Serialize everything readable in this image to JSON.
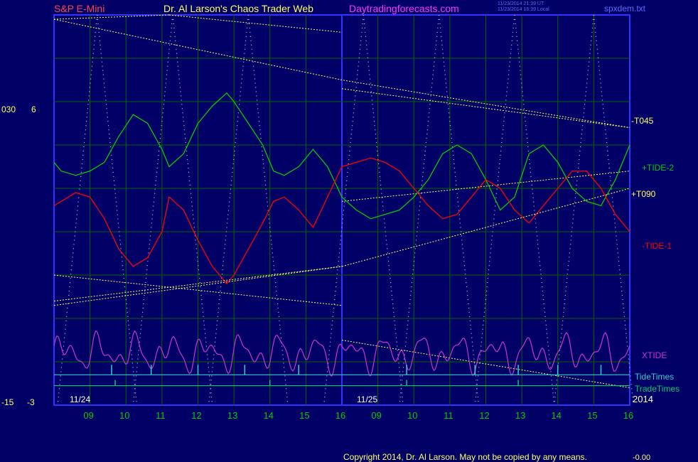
{
  "header": {
    "symbol": "S&P E-Mini",
    "author": "Dr. Al Larson's Chaos Trader Web",
    "site": "Daytradingforecasts.com",
    "utc_time": "11/23/2014 21:39 UT",
    "local_time": "11/23/2014 16:39 Local",
    "file": "spxdem.txt"
  },
  "footer": {
    "copyright": "Copyright 2014, Dr. Al Larson. May not be copied by any means.",
    "corner": "-0.00"
  },
  "colors": {
    "background": "#000066",
    "frame": "#3333ff",
    "grid": "#006600",
    "tide2": "#00cc00",
    "tide1": "#ff0000",
    "xtide": "#cc33cc",
    "tidetimes": "#33cccc",
    "tradetimes": "#00cc66",
    "trend": "#ffff66",
    "dots": "#c8c8ff"
  },
  "chart_data": {
    "type": "line",
    "x_tick_labels": [
      "09",
      "10",
      "11",
      "12",
      "13",
      "14",
      "15",
      "16",
      "09",
      "10",
      "11",
      "12",
      "13",
      "14",
      "15",
      "16"
    ],
    "day_labels": [
      "11/24",
      "11/25"
    ],
    "year_label": "2014",
    "left_scale_a": {
      "top": "030",
      "bottom": "-15"
    },
    "left_scale_b": {
      "top": "6",
      "bottom": "-3"
    },
    "x_range": [
      0,
      16
    ],
    "y_range": [
      -3,
      6
    ],
    "series": [
      {
        "name": "+TIDE-2",
        "x": [
          0,
          0.2,
          0.6,
          1.0,
          1.4,
          1.8,
          2.2,
          2.6,
          3.0,
          3.2,
          3.6,
          4.0,
          4.4,
          4.8,
          5.0,
          5.4,
          5.8,
          6.1,
          6.4,
          6.8,
          7.2,
          7.6,
          8.0,
          8.4,
          8.8,
          9.2,
          9.6,
          10.0,
          10.4,
          10.8,
          11.2,
          11.6,
          12.0,
          12.4,
          12.8,
          13.2,
          13.6,
          14.0,
          14.4,
          14.8,
          15.2,
          15.6,
          16.0
        ],
        "values": [
          2.6,
          2.4,
          2.3,
          2.4,
          2.6,
          3.2,
          3.7,
          3.5,
          2.9,
          2.5,
          2.8,
          3.5,
          3.9,
          4.2,
          4.0,
          3.5,
          3.0,
          2.4,
          2.3,
          2.5,
          2.9,
          2.5,
          1.8,
          1.5,
          1.3,
          1.4,
          1.5,
          1.8,
          2.2,
          2.8,
          3.0,
          2.8,
          2.2,
          1.5,
          1.8,
          2.8,
          3.0,
          2.6,
          2.0,
          1.7,
          1.6,
          2.2,
          3.0
        ]
      },
      {
        "name": "-TIDE-1",
        "x": [
          0,
          0.2,
          0.6,
          1.0,
          1.4,
          1.8,
          2.2,
          2.6,
          3.0,
          3.2,
          3.6,
          4.0,
          4.4,
          4.8,
          5.0,
          5.4,
          5.8,
          6.1,
          6.4,
          6.8,
          7.2,
          7.6,
          8.0,
          8.4,
          8.8,
          9.2,
          9.6,
          10.0,
          10.4,
          10.8,
          11.2,
          11.6,
          12.0,
          12.4,
          12.8,
          13.2,
          13.6,
          14.0,
          14.4,
          14.8,
          15.2,
          15.6,
          16.0
        ],
        "values": [
          1.6,
          1.7,
          1.9,
          1.8,
          1.3,
          0.6,
          0.2,
          0.4,
          1.0,
          1.8,
          1.5,
          0.8,
          0.2,
          -0.2,
          0.0,
          0.6,
          1.2,
          1.7,
          1.8,
          1.5,
          1.1,
          1.8,
          2.5,
          2.6,
          2.7,
          2.6,
          2.4,
          2.0,
          1.6,
          1.3,
          1.4,
          1.8,
          2.2,
          2.0,
          1.5,
          1.2,
          1.6,
          2.0,
          2.4,
          2.4,
          2.0,
          1.4,
          1.0
        ]
      },
      {
        "name": "+T090",
        "x": [
          0,
          8,
          16
        ],
        "values": [
          -0.6,
          0.2,
          2.0
        ]
      },
      {
        "name": "-T045",
        "x": [
          0,
          8,
          16
        ],
        "values": [
          5.9,
          4.5,
          3.4
        ]
      },
      {
        "name": "XTIDE",
        "x": [],
        "values": []
      },
      {
        "name": "TideTimes",
        "x": [],
        "values": []
      },
      {
        "name": "TradeTimes",
        "x": [],
        "values": []
      }
    ]
  }
}
